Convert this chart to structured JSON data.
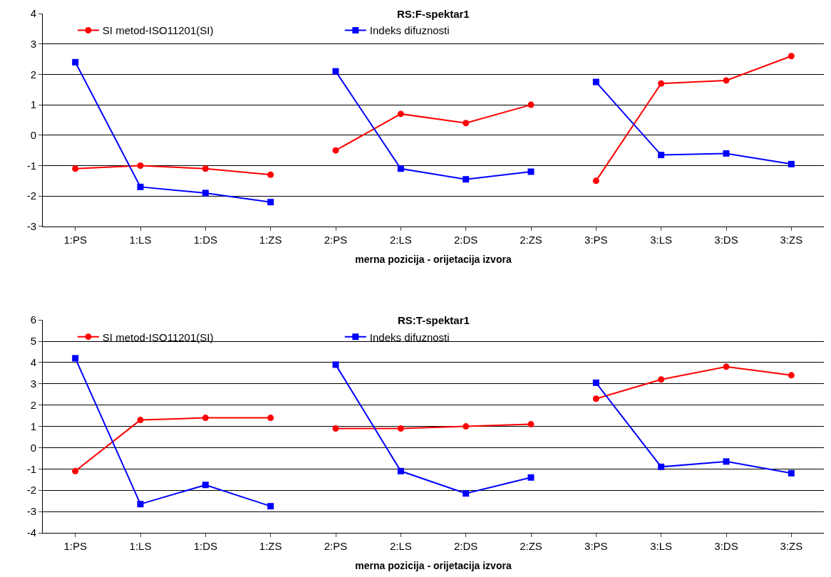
{
  "chart_data": [
    {
      "type": "line",
      "title": "RS:F-spektar1",
      "xlabel": "merna pozicija - orijetacija izvora",
      "categories": [
        "1:PS",
        "1:LS",
        "1:DS",
        "1:ZS",
        "2:PS",
        "2:LS",
        "2:DS",
        "2:ZS",
        "3:PS",
        "3:LS",
        "3:DS",
        "3:ZS"
      ],
      "ylim": [
        -3,
        4
      ],
      "yticks": [
        -3,
        -2,
        -1,
        0,
        1,
        2,
        3,
        4
      ],
      "grid": "y",
      "legend": "top left",
      "series": [
        {
          "name": "SI metod-ISO11201(SI)",
          "color": "#ff0000",
          "marker": "circle",
          "values": [
            -1.1,
            -1.0,
            -1.1,
            -1.3,
            null,
            null,
            null,
            null,
            null,
            null,
            null,
            null
          ]
        },
        {
          "name": "Indeks difuznosti",
          "color": "#0000ff",
          "marker": "square",
          "values": [
            2.4,
            -1.7,
            -1.9,
            -2.2,
            null,
            null,
            null,
            null,
            null,
            null,
            null,
            null
          ]
        },
        {
          "color": "#ff0000",
          "marker": "circle",
          "values": [
            null,
            null,
            null,
            null,
            -0.5,
            0.7,
            0.4,
            1.0,
            null,
            null,
            null,
            null
          ]
        },
        {
          "color": "#0000ff",
          "marker": "square",
          "values": [
            null,
            null,
            null,
            null,
            2.1,
            -1.1,
            -1.45,
            -1.2,
            null,
            null,
            null,
            null
          ]
        },
        {
          "color": "#ff0000",
          "marker": "circle",
          "values": [
            null,
            null,
            null,
            null,
            null,
            null,
            null,
            null,
            -1.5,
            1.7,
            1.8,
            2.6
          ]
        },
        {
          "color": "#0000ff",
          "marker": "square",
          "values": [
            null,
            null,
            null,
            null,
            null,
            null,
            null,
            null,
            1.75,
            -0.65,
            -0.6,
            -0.95
          ]
        }
      ]
    },
    {
      "type": "line",
      "title": "RS:T-spektar1",
      "xlabel": "merna pozicija - orijetacija izvora",
      "categories": [
        "1:PS",
        "1:LS",
        "1:DS",
        "1:ZS",
        "2:PS",
        "2:LS",
        "2:DS",
        "2:ZS",
        "3:PS",
        "3:LS",
        "3:DS",
        "3:ZS"
      ],
      "ylim": [
        -4,
        6
      ],
      "yticks": [
        -4,
        -3,
        -2,
        -1,
        0,
        1,
        2,
        3,
        4,
        5,
        6
      ],
      "grid": "y",
      "legend": "top left",
      "series": [
        {
          "name": "SI metod-ISO11201(SI)",
          "color": "#ff0000",
          "marker": "circle",
          "values": [
            -1.1,
            1.3,
            1.4,
            1.4,
            null,
            null,
            null,
            null,
            null,
            null,
            null,
            null
          ]
        },
        {
          "name": "Indeks difuznosti",
          "color": "#0000ff",
          "marker": "square",
          "values": [
            4.2,
            -2.65,
            -1.75,
            -2.75,
            null,
            null,
            null,
            null,
            null,
            null,
            null,
            null
          ]
        },
        {
          "color": "#ff0000",
          "marker": "circle",
          "values": [
            null,
            null,
            null,
            null,
            0.9,
            0.9,
            1.0,
            1.1,
            null,
            null,
            null,
            null
          ]
        },
        {
          "color": "#0000ff",
          "marker": "square",
          "values": [
            null,
            null,
            null,
            null,
            3.9,
            -1.1,
            -2.15,
            -1.4,
            null,
            null,
            null,
            null
          ]
        },
        {
          "color": "#ff0000",
          "marker": "circle",
          "values": [
            null,
            null,
            null,
            null,
            null,
            null,
            null,
            null,
            2.3,
            3.2,
            3.8,
            3.4
          ]
        },
        {
          "color": "#0000ff",
          "marker": "square",
          "values": [
            null,
            null,
            null,
            null,
            null,
            null,
            null,
            null,
            3.05,
            -0.9,
            -0.65,
            -1.2
          ]
        }
      ]
    }
  ]
}
